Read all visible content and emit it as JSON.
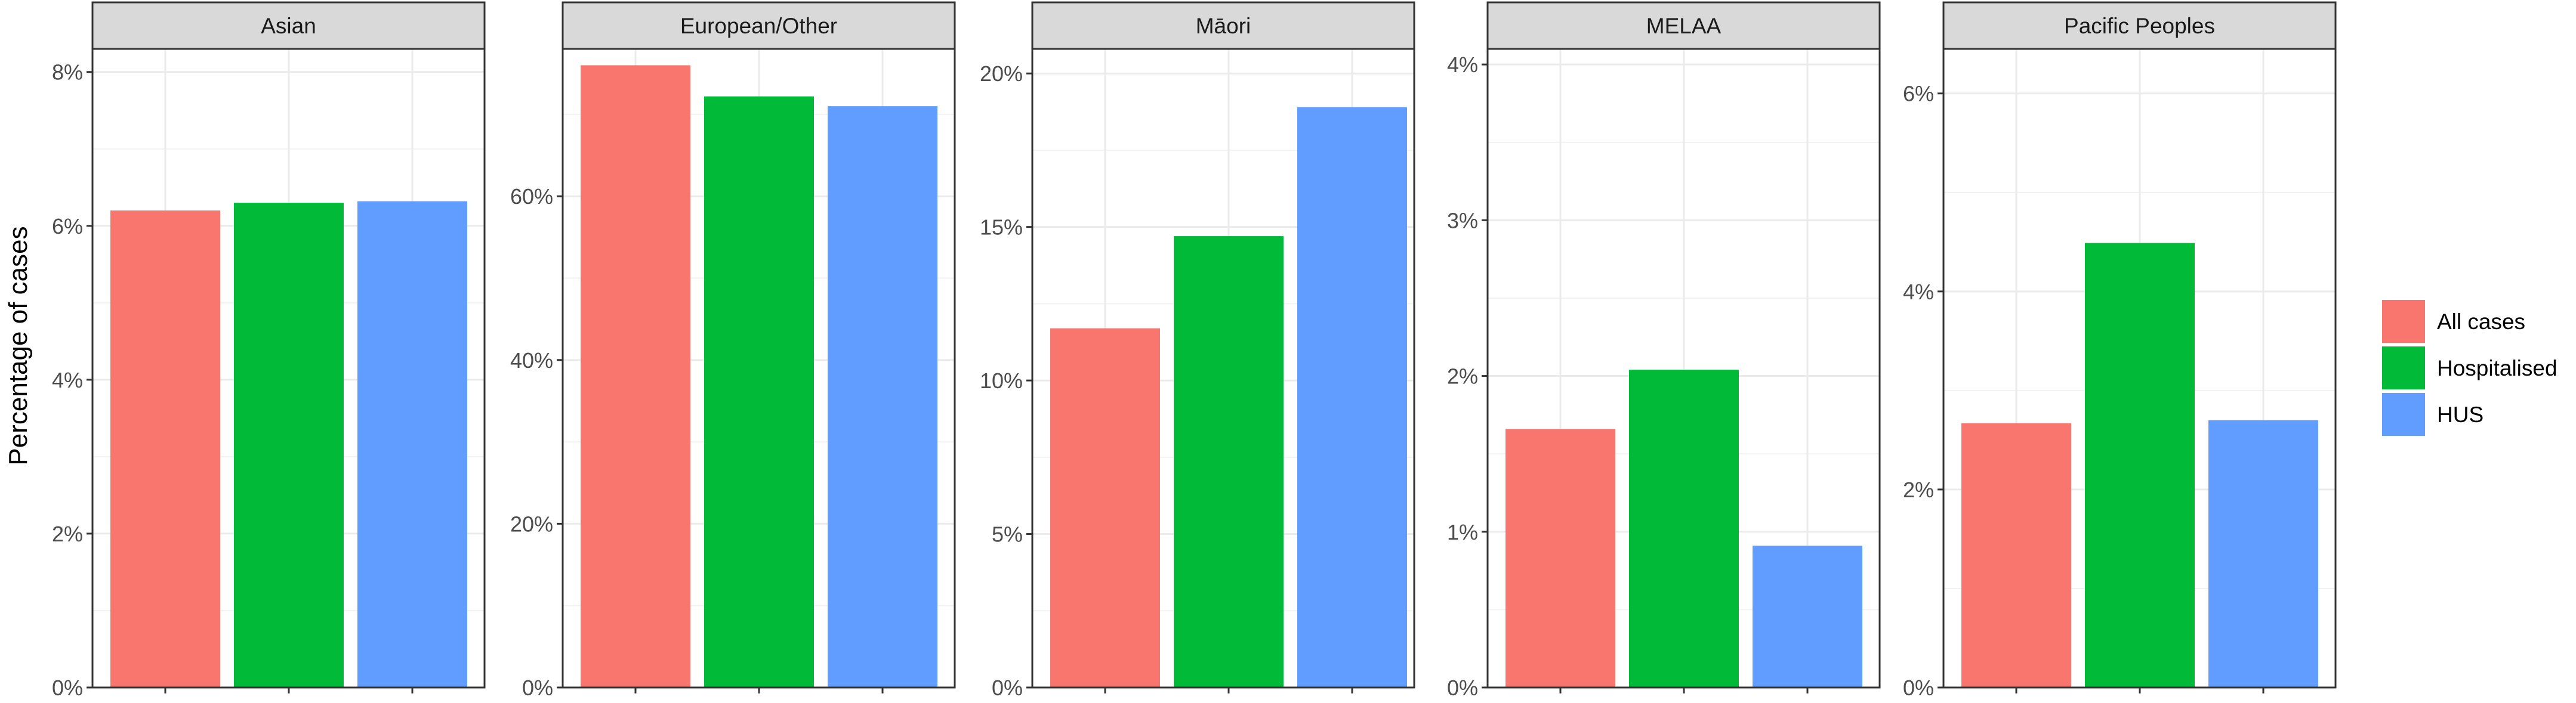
{
  "chart_data": {
    "type": "bar",
    "ylabel": "Percentage of cases",
    "xlabel": "",
    "legend_position": "right",
    "grid": true,
    "series": [
      {
        "name": "All cases",
        "color": "#F8766D"
      },
      {
        "name": "Hospitalised",
        "color": "#00BA38"
      },
      {
        "name": "HUS",
        "color": "#619CFF"
      }
    ],
    "panels": [
      {
        "title": "Asian",
        "ylim": [
          0,
          8.3
        ],
        "ticks": [
          0,
          2,
          4,
          6,
          8
        ],
        "tick_labels": [
          "0%",
          "2%",
          "4%",
          "6%",
          "8%"
        ],
        "values": [
          6.2,
          6.3,
          6.32
        ]
      },
      {
        "title": "European/Other",
        "ylim": [
          0,
          78
        ],
        "ticks": [
          0,
          20,
          40,
          60
        ],
        "tick_labels": [
          "0%",
          "20%",
          "40%",
          "60%"
        ],
        "values": [
          76.0,
          72.2,
          71.0
        ]
      },
      {
        "title": "Māori",
        "ylim": [
          0,
          20.8
        ],
        "ticks": [
          0,
          5,
          10,
          15,
          20
        ],
        "tick_labels": [
          "0%",
          "5%",
          "10%",
          "15%",
          "20%"
        ],
        "values": [
          11.7,
          14.7,
          18.9
        ]
      },
      {
        "title": "MELAA",
        "ylim": [
          0,
          4.1
        ],
        "ticks": [
          0,
          1,
          2,
          3,
          4
        ],
        "tick_labels": [
          "0%",
          "1%",
          "2%",
          "3%",
          "4%"
        ],
        "values": [
          1.66,
          2.04,
          0.91
        ]
      },
      {
        "title": "Pacific Peoples",
        "ylim": [
          0,
          6.45
        ],
        "ticks": [
          0,
          2,
          4,
          6
        ],
        "tick_labels": [
          "0%",
          "2%",
          "4%",
          "6%"
        ],
        "values": [
          2.67,
          4.49,
          2.7
        ]
      }
    ]
  }
}
